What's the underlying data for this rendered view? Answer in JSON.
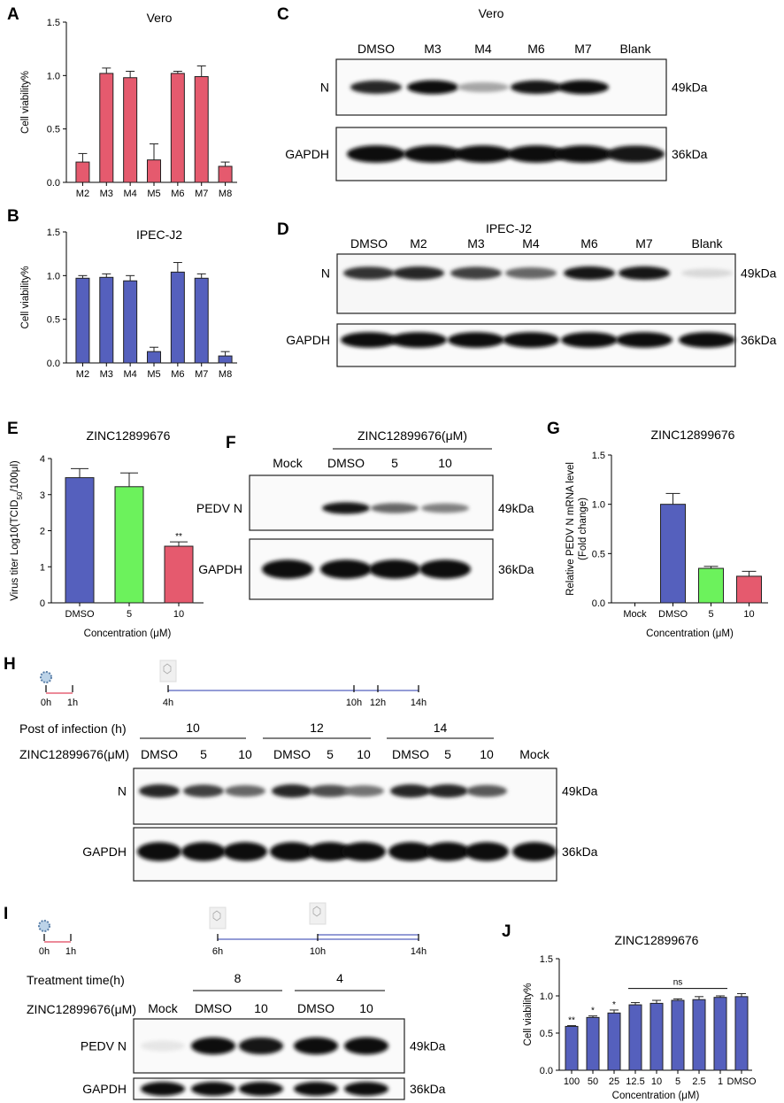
{
  "panels": {
    "A": "A",
    "B": "B",
    "C": "C",
    "D": "D",
    "E": "E",
    "F": "F",
    "G": "G",
    "H": "H",
    "I": "I",
    "J": "J"
  },
  "chart_data": [
    {
      "id": "A",
      "type": "bar",
      "title": "Vero",
      "xlabel": "",
      "ylabel": "Cell viability%",
      "ylim": [
        0,
        1.5
      ],
      "yticks": [
        "0.0",
        "0.5",
        "1.0",
        "1.5"
      ],
      "categories": [
        "M2",
        "M3",
        "M4",
        "M5",
        "M6",
        "M7",
        "M8"
      ],
      "values": [
        0.19,
        1.02,
        0.98,
        0.21,
        1.02,
        0.99,
        0.15
      ],
      "errors": [
        0.08,
        0.05,
        0.06,
        0.15,
        0.02,
        0.1,
        0.04
      ],
      "color": "#e55a6e"
    },
    {
      "id": "B",
      "type": "bar",
      "title": "IPEC-J2",
      "xlabel": "",
      "ylabel": "Cell viability%",
      "ylim": [
        0,
        1.5
      ],
      "yticks": [
        "0.0",
        "0.5",
        "1.0",
        "1.5"
      ],
      "categories": [
        "M2",
        "M3",
        "M4",
        "M5",
        "M6",
        "M7",
        "M8"
      ],
      "values": [
        0.97,
        0.98,
        0.94,
        0.13,
        1.04,
        0.97,
        0.08
      ],
      "errors": [
        0.03,
        0.04,
        0.06,
        0.05,
        0.11,
        0.05,
        0.05
      ],
      "color": "#5560bd"
    },
    {
      "id": "E",
      "type": "bar",
      "title": "ZINC12899676",
      "xlabel": "Concentration (μM)",
      "ylabel": "Virus titer Log10(TCID50/100μl)",
      "ylim": [
        0,
        4
      ],
      "yticks": [
        "0",
        "1",
        "2",
        "3",
        "4"
      ],
      "categories": [
        "DMSO",
        "5",
        "10"
      ],
      "values": [
        3.47,
        3.22,
        1.57
      ],
      "errors": [
        0.25,
        0.38,
        0.12
      ],
      "colors": [
        "#5560bd",
        "#6cf25c",
        "#e55a6e"
      ],
      "annotations": [
        "",
        "",
        "**"
      ]
    },
    {
      "id": "G",
      "type": "bar",
      "title": "ZINC12899676",
      "xlabel": "Concentration (μM)",
      "ylabel": "Relative PEDV N mRNA level (Fold change)",
      "ylim": [
        0,
        1.5
      ],
      "yticks": [
        "0.0",
        "0.5",
        "1.0",
        "1.5"
      ],
      "categories": [
        "Mock",
        "DMSO",
        "5",
        "10"
      ],
      "values": [
        0,
        1.0,
        0.35,
        0.27
      ],
      "errors": [
        0,
        0.11,
        0.02,
        0.05
      ],
      "colors": [
        "#5560bd",
        "#5560bd",
        "#6cf25c",
        "#e55a6e"
      ]
    },
    {
      "id": "J",
      "type": "bar",
      "title": "ZINC12899676",
      "xlabel": "Concentration (μM)",
      "ylabel": "Cell viability%",
      "ylim": [
        0,
        1.5
      ],
      "yticks": [
        "0.0",
        "0.5",
        "1.0",
        "1.5"
      ],
      "categories": [
        "100",
        "50",
        "25",
        "12.5",
        "10",
        "5",
        "2.5",
        "1",
        "DMSO"
      ],
      "values": [
        0.59,
        0.71,
        0.77,
        0.88,
        0.9,
        0.94,
        0.95,
        0.98,
        0.99
      ],
      "errors": [
        0.01,
        0.02,
        0.04,
        0.03,
        0.04,
        0.02,
        0.04,
        0.02,
        0.04
      ],
      "color": "#5560bd",
      "annotations": [
        "**",
        "*",
        "*",
        "",
        "",
        "",
        "",
        "",
        ""
      ],
      "bracket_label": "ns"
    }
  ],
  "blots": {
    "C": {
      "title": "Vero",
      "lanes": [
        "DMSO",
        "M3",
        "M4",
        "M6",
        "M7",
        "Blank"
      ],
      "rows": [
        {
          "label": "N",
          "kda": "49kDa",
          "intensity": [
            0.85,
            0.95,
            0.35,
            0.9,
            0.95,
            0.0
          ]
        },
        {
          "label": "GAPDH",
          "kda": "36kDa",
          "intensity": [
            0.95,
            0.95,
            0.95,
            0.95,
            0.95,
            0.9
          ]
        }
      ]
    },
    "D": {
      "title": "IPEC-J2",
      "lanes": [
        "DMSO",
        "M2",
        "M3",
        "M4",
        "M6",
        "M7",
        "Blank"
      ],
      "rows": [
        {
          "label": "N",
          "kda": "49kDa",
          "intensity": [
            0.8,
            0.85,
            0.75,
            0.6,
            0.9,
            0.9,
            0.15
          ]
        },
        {
          "label": "GAPDH",
          "kda": "36kDa",
          "intensity": [
            0.95,
            0.95,
            0.95,
            0.95,
            0.95,
            0.95,
            0.95
          ]
        }
      ]
    },
    "F": {
      "header": "ZINC12899676(μM)",
      "lanes": [
        "Mock",
        "DMSO",
        "5",
        "10"
      ],
      "rows": [
        {
          "label": "PEDV N",
          "kda": "49kDa",
          "intensity": [
            0.0,
            0.9,
            0.6,
            0.5
          ]
        },
        {
          "label": "GAPDH",
          "kda": "36kDa",
          "intensity": [
            0.95,
            0.95,
            0.95,
            0.95
          ]
        }
      ]
    },
    "H": {
      "timeline": [
        "0h",
        "1h",
        "4h",
        "10h",
        "12h",
        "14h"
      ],
      "row1_label": "Post of infection (h)",
      "groups": [
        "10",
        "12",
        "14"
      ],
      "row2_label": "ZINC12899676(μM)",
      "lanes": [
        "DMSO",
        "5",
        "10",
        "DMSO",
        "5",
        "10",
        "DMSO",
        "5",
        "10",
        "Mock"
      ],
      "rows": [
        {
          "label": "N",
          "kda": "49kDa",
          "intensity": [
            0.85,
            0.75,
            0.6,
            0.85,
            0.7,
            0.55,
            0.85,
            0.85,
            0.65,
            0.0
          ]
        },
        {
          "label": "GAPDH",
          "kda": "36kDa",
          "intensity": [
            0.95,
            0.95,
            0.95,
            0.95,
            0.95,
            0.95,
            0.95,
            0.95,
            0.95,
            0.95
          ]
        }
      ]
    },
    "I": {
      "timeline": [
        "0h",
        "1h",
        "6h",
        "10h",
        "14h"
      ],
      "row1_label": "Treatment time(h)",
      "groups": [
        "8",
        "4"
      ],
      "row2_label": "ZINC12899676(μM)",
      "lanes": [
        "Mock",
        "DMSO",
        "10",
        "DMSO",
        "10"
      ],
      "rows": [
        {
          "label": "PEDV N",
          "kda": "49kDa",
          "intensity": [
            0.1,
            0.95,
            0.9,
            0.95,
            0.95
          ]
        },
        {
          "label": "GAPDH",
          "kda": "36kDa",
          "intensity": [
            0.95,
            0.95,
            0.95,
            0.95,
            0.95
          ]
        }
      ]
    }
  }
}
